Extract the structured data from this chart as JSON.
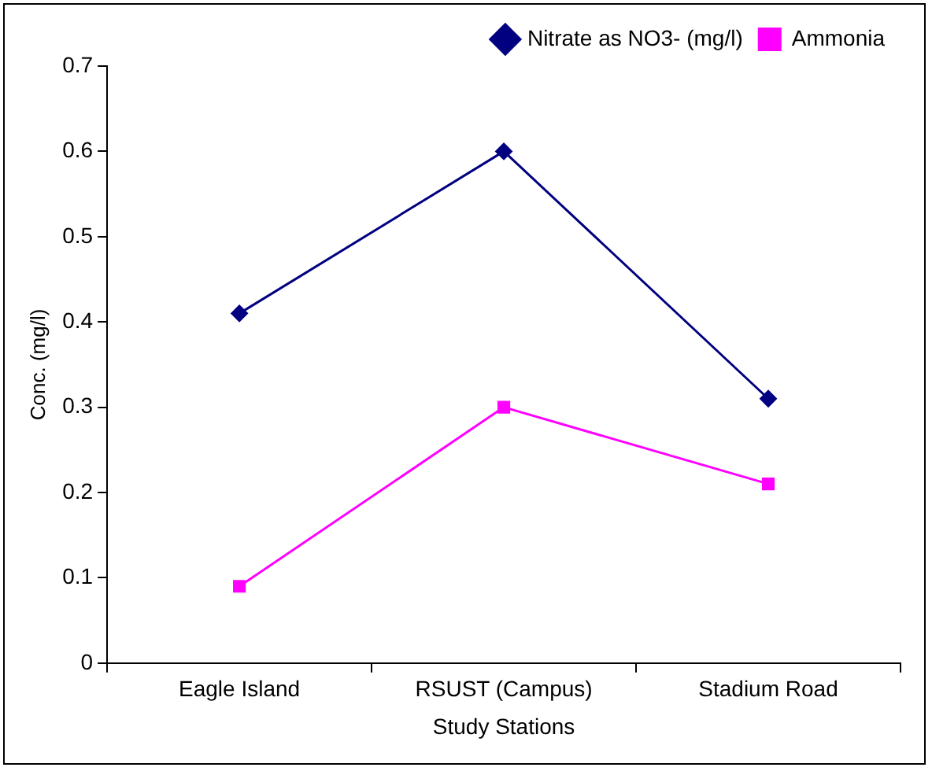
{
  "chart_data": {
    "type": "line",
    "xlabel": "Study Stations",
    "ylabel": "Conc. (mg/l)",
    "categories": [
      "Eagle Island",
      "RSUST (Campus)",
      "Stadium Road"
    ],
    "series": [
      {
        "name": "Nitrate as NO3- (mg/l)",
        "color": "#000080",
        "values": [
          0.41,
          0.6,
          0.31
        ],
        "marker": "diamond"
      },
      {
        "name": "Ammonia",
        "color": "#ff00ff",
        "values": [
          0.09,
          0.3,
          0.21
        ],
        "marker": "square"
      }
    ],
    "ylim": [
      0,
      0.7
    ],
    "yticks": [
      0,
      0.1,
      0.2,
      0.3,
      0.4,
      0.5,
      0.6,
      0.7
    ],
    "grid": false,
    "legend": "top right",
    "line_style": "solid"
  }
}
